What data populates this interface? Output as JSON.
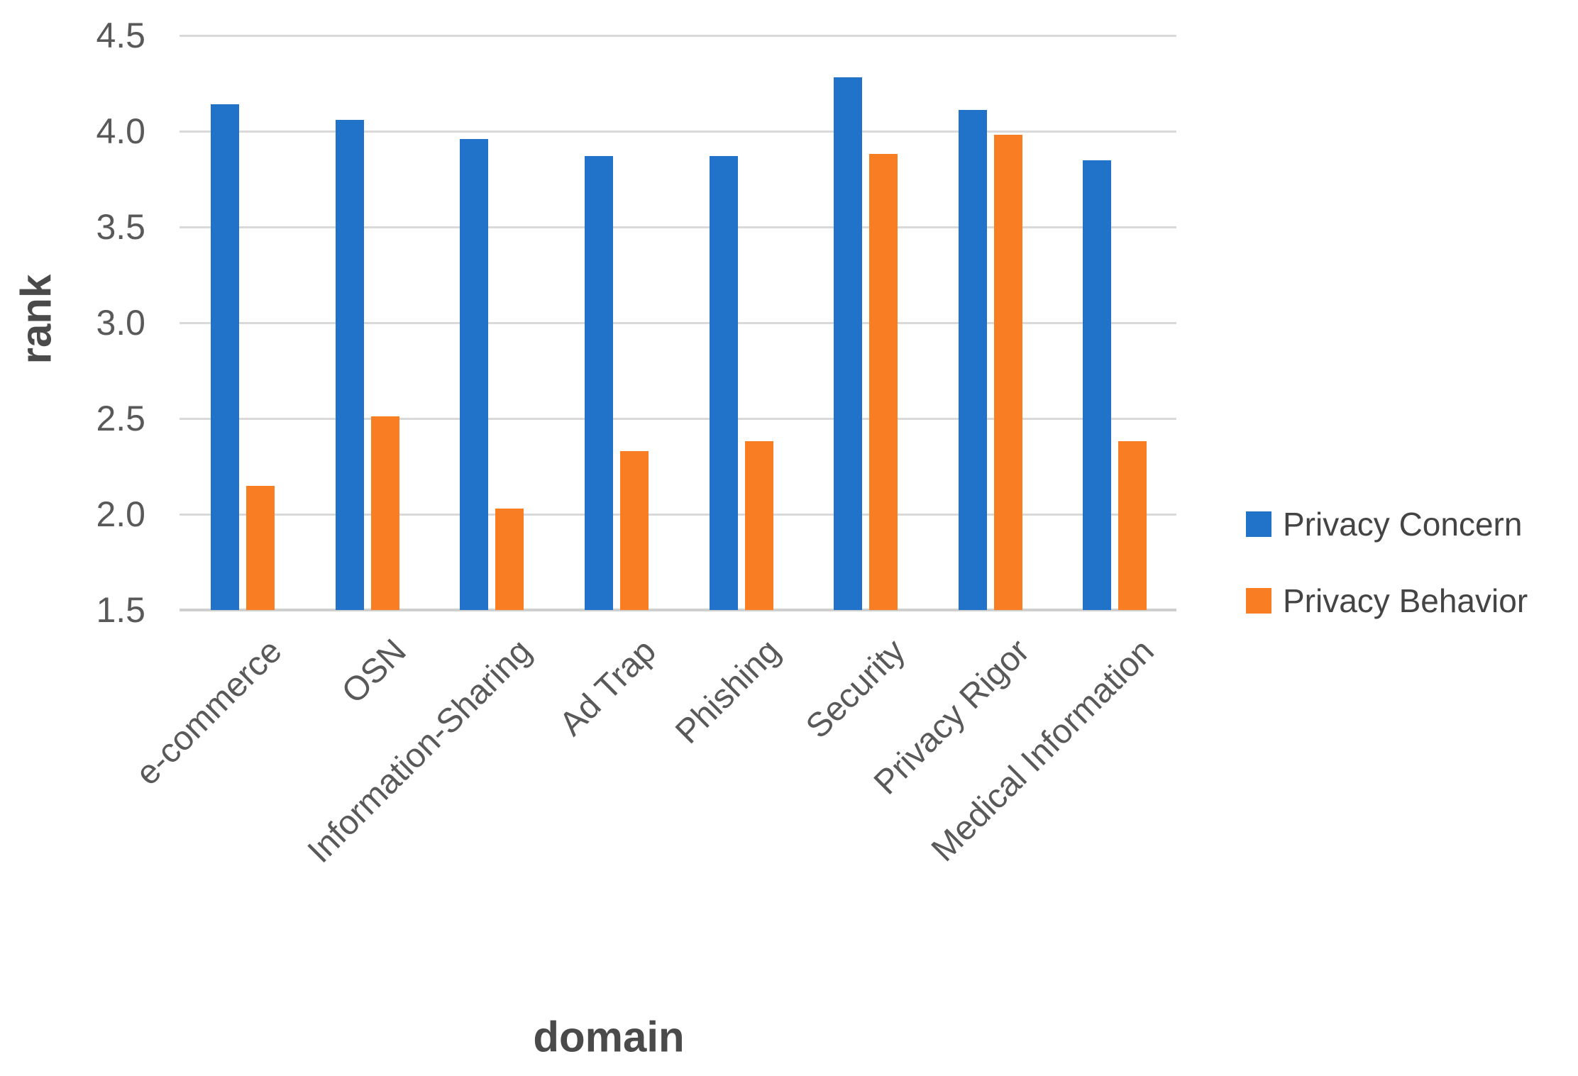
{
  "chart_data": {
    "type": "bar",
    "title": "",
    "xlabel": "domain",
    "ylabel": "rank",
    "categories": [
      "e-commerce",
      "OSN",
      "Information-Sharing",
      "Ad Trap",
      "Phishing",
      "Security",
      "Privacy Rigor",
      "Medical Information"
    ],
    "series": [
      {
        "name": "Privacy Concern",
        "color": "#2173c9",
        "values": [
          4.14,
          4.06,
          3.96,
          3.87,
          3.87,
          4.28,
          4.11,
          3.85
        ]
      },
      {
        "name": "Privacy Behavior",
        "color": "#f97e23",
        "values": [
          2.15,
          2.51,
          2.03,
          2.33,
          2.38,
          3.88,
          3.98,
          2.38
        ]
      }
    ],
    "ylim": [
      1.5,
      4.5
    ],
    "ytick_labels": [
      "4.5",
      "4.0",
      "3.5",
      "3.0",
      "2.5",
      "2.0",
      "1.5"
    ],
    "grid": "horizontal gridlines on",
    "legend_position": "right",
    "colors": {
      "gridline": "#d9d9d9",
      "axis_line": "#cfcfcf",
      "tick_text": "#595959",
      "axis_title_text": "#4a4a4a",
      "legend_text": "#444444",
      "background": "#ffffff"
    }
  }
}
